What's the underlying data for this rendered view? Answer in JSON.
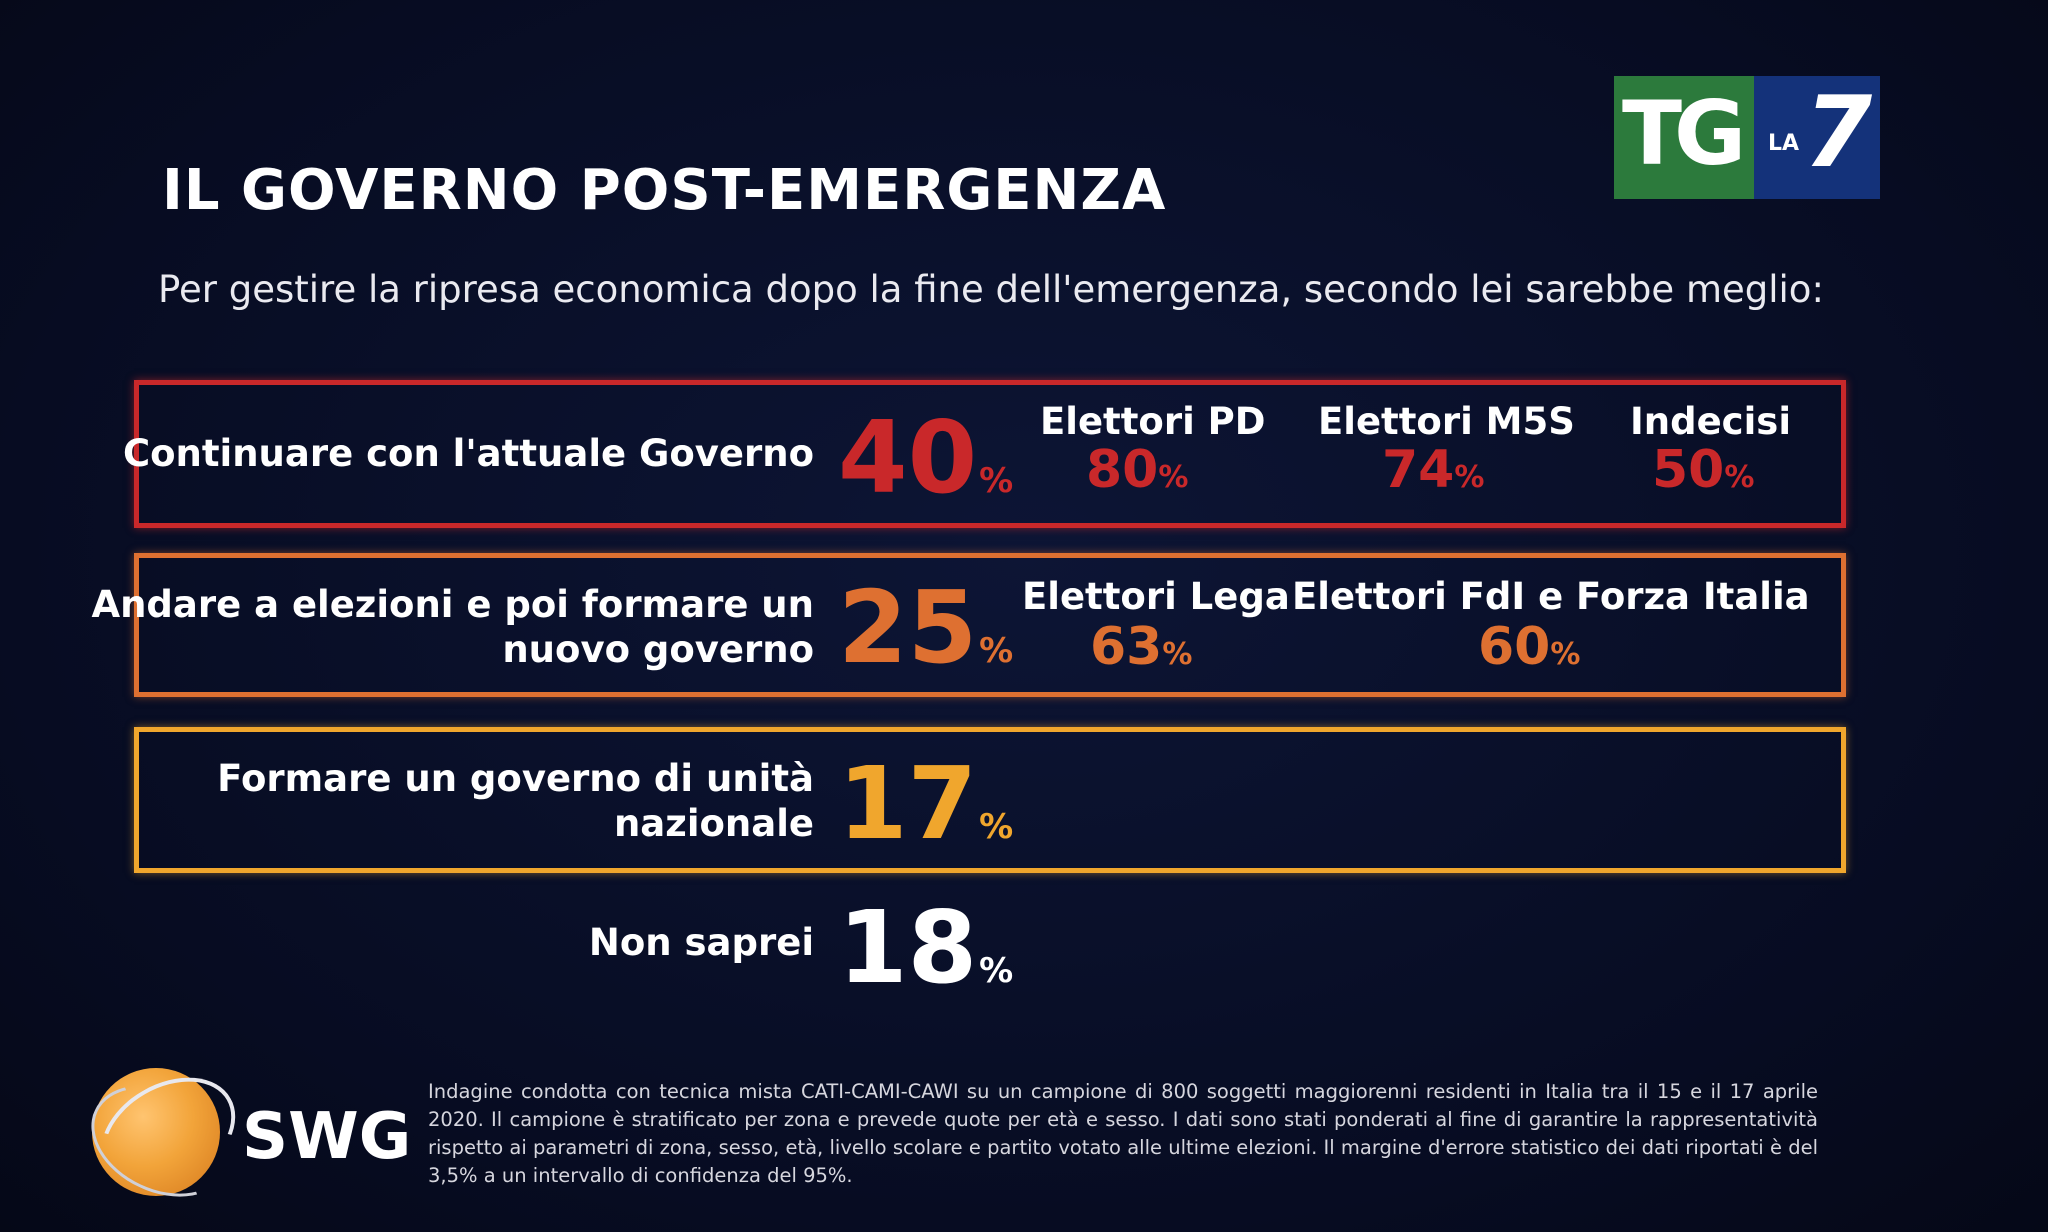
{
  "header": {
    "title": "IL GOVERNO POST-EMERGENZA",
    "subtitle": "Per gestire la ripresa economica dopo la fine dell'emergenza, secondo lei sarebbe meglio:"
  },
  "logo": {
    "tg": "TG",
    "la": "LA",
    "seven": "7",
    "swg": "SWG"
  },
  "colors": {
    "row1": "#c9282a",
    "row2": "#de7031",
    "row3": "#f0a62d",
    "row4": "#ffffff"
  },
  "rows": [
    {
      "label_lines": [
        "Continuare con l'attuale Governo"
      ],
      "value": "40",
      "unit": "%",
      "segments": [
        {
          "name": "Elettori PD",
          "value": "80",
          "unit": "%"
        },
        {
          "name": "Elettori M5S",
          "value": "74",
          "unit": "%"
        },
        {
          "name": "Indecisi",
          "value": "50",
          "unit": "%"
        }
      ]
    },
    {
      "label_lines": [
        "Andare a elezioni e poi formare un",
        "nuovo governo"
      ],
      "value": "25",
      "unit": "%",
      "segments": [
        {
          "name": "Elettori Lega",
          "value": "63",
          "unit": "%"
        },
        {
          "name": "Elettori FdI e Forza Italia",
          "value": "60",
          "unit": "%"
        }
      ]
    },
    {
      "label_lines": [
        "Formare un governo di unità",
        "nazionale"
      ],
      "value": "17",
      "unit": "%"
    },
    {
      "label_lines": [
        "Non saprei"
      ],
      "value": "18",
      "unit": "%"
    }
  ],
  "chart_data": {
    "type": "table",
    "title": "IL GOVERNO POST-EMERGENZA",
    "subtitle": "Per gestire la ripresa economica dopo la fine dell'emergenza, secondo lei sarebbe meglio:",
    "categories": [
      "Continuare con l'attuale Governo",
      "Andare a elezioni e poi formare un nuovo governo",
      "Formare un governo di unità nazionale",
      "Non saprei"
    ],
    "values": [
      40,
      25,
      17,
      18
    ],
    "breakdowns": [
      {
        "category": "Continuare con l'attuale Governo",
        "groups": [
          "Elettori PD",
          "Elettori M5S",
          "Indecisi"
        ],
        "values": [
          80,
          74,
          50
        ]
      },
      {
        "category": "Andare a elezioni e poi formare un nuovo governo",
        "groups": [
          "Elettori Lega",
          "Elettori FdI e Forza Italia"
        ],
        "values": [
          63,
          60
        ]
      }
    ]
  },
  "footnote": "Indagine condotta con tecnica mista CATI-CAMI-CAWI su un campione di 800 soggetti maggiorenni residenti in Italia tra il 15 e il 17 aprile 2020. Il campione è stratificato per zona e prevede quote per età e sesso. I dati sono stati ponderati al fine di garantire la rappresentatività rispetto ai parametri di zona, sesso, età, livello scolare e partito votato alle ultime elezioni. Il margine d'errore statistico dei dati riportati è del 3,5% a un intervallo di confidenza del 95%."
}
